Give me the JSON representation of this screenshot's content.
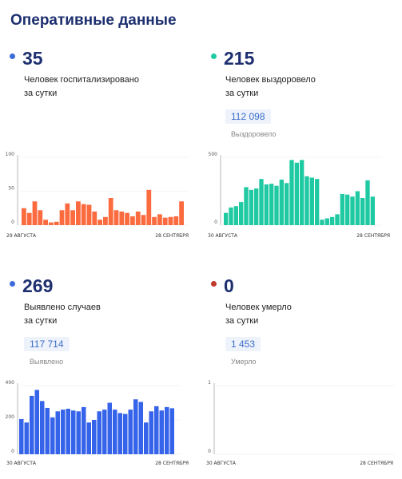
{
  "title": "Оперативные данные",
  "cards": [
    {
      "value": "35",
      "dot_color": "#3b6cd9",
      "label_line1": "Человек госпитализировано",
      "label_line2": "за сутки",
      "chart": {
        "type": "bar",
        "color": "#fb6b3f",
        "yticks": [
          "100",
          "50",
          "0"
        ],
        "ylim": [
          0,
          100
        ],
        "x_start": "29 АВГУСТА",
        "x_end": "28 СЕНТЯБРЯ",
        "values": [
          25,
          18,
          35,
          22,
          8,
          4,
          5,
          22,
          32,
          22,
          35,
          31,
          30,
          20,
          8,
          12,
          40,
          22,
          20,
          18,
          13,
          20,
          15,
          52,
          12,
          16,
          11,
          12,
          13,
          35
        ]
      }
    },
    {
      "value": "215",
      "dot_color": "#1fc9a2",
      "label_line1": "Человек выздоровело",
      "label_line2": "за сутки",
      "total": "112 098",
      "total_label": "Выздоровело",
      "chart": {
        "type": "bar",
        "color": "#1fc9a2",
        "yticks": [
          "500",
          "0"
        ],
        "ylim": [
          0,
          500
        ],
        "x_start": "30 АВГУСТА",
        "x_end": "28 СЕНТЯБРЯ",
        "values": [
          90,
          130,
          140,
          170,
          280,
          260,
          270,
          340,
          300,
          305,
          290,
          335,
          310,
          480,
          460,
          480,
          360,
          350,
          340,
          40,
          50,
          60,
          80,
          230,
          225,
          210,
          250,
          200,
          330,
          210
        ]
      }
    },
    {
      "value": "269",
      "dot_color": "#3b6cd9",
      "label_line1": "Выявлено случаев",
      "label_line2": "за сутки",
      "total": "117 714",
      "total_label": "Выявлено",
      "chart": {
        "type": "bar",
        "color": "#3563e9",
        "yticks": [
          "400",
          "200",
          "0"
        ],
        "ylim": [
          0,
          400
        ],
        "x_start": "30 АВГУСТА",
        "x_end": "28 СЕНТЯБРЯ",
        "values": [
          205,
          185,
          340,
          375,
          310,
          270,
          215,
          250,
          260,
          265,
          255,
          250,
          275,
          185,
          200,
          250,
          260,
          300,
          260,
          240,
          235,
          260,
          320,
          305,
          185,
          250,
          280,
          255,
          275,
          268
        ]
      }
    },
    {
      "value": "0",
      "dot_color": "#c0392b",
      "label_line1": "Человек умерло",
      "label_line2": "за сутки",
      "total": "1 453",
      "total_label": "Умерло",
      "chart": {
        "type": "bar",
        "color": "#c0392b",
        "yticks": [
          "1",
          "0"
        ],
        "ylim": [
          0,
          1
        ],
        "x_start": "30 АВГУСТА",
        "x_end": "28 СЕНТЯБРЯ",
        "values": [
          0,
          0,
          0,
          0,
          0,
          0,
          0,
          0,
          0,
          0,
          0,
          0,
          0,
          0,
          0,
          0,
          0,
          0,
          0,
          0,
          0,
          0,
          0,
          0,
          0,
          0,
          0,
          0,
          0,
          0
        ]
      }
    }
  ]
}
